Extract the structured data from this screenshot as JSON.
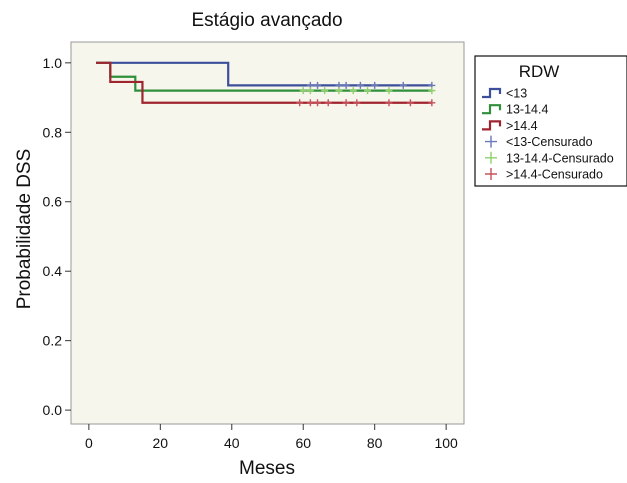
{
  "chart_data": {
    "type": "line",
    "subtype": "kaplan-meier",
    "title": "Estágio avançado",
    "xlabel": "Meses",
    "ylabel": "Probabilidade DSS",
    "xlim": [
      -5,
      105
    ],
    "ylim": [
      -0.04,
      1.06
    ],
    "xticks": [
      0,
      20,
      40,
      60,
      80,
      100
    ],
    "yticks": [
      0.0,
      0.2,
      0.4,
      0.6,
      0.8,
      1.0
    ],
    "ytick_labels": [
      "0.0",
      "0.2",
      "0.4",
      "0.6",
      "0.8",
      "1.0"
    ],
    "grid": false,
    "background": "#f6f6ec",
    "legend": {
      "title": "RDW",
      "placement": "right",
      "entries": [
        {
          "label": "<13",
          "kind": "line",
          "color": "#3c4f9a"
        },
        {
          "label": "13-14.4",
          "kind": "line",
          "color": "#2f8f3a"
        },
        {
          "label": ">14.4",
          "kind": "line",
          "color": "#a0242e"
        },
        {
          "label": "<13-Censurado",
          "kind": "cross",
          "color": "#6a78b8"
        },
        {
          "label": "13-14.4-Censurado",
          "kind": "cross",
          "color": "#8fd06a"
        },
        {
          "label": ">14.4-Censurado",
          "kind": "cross",
          "color": "#c8505a"
        }
      ]
    },
    "series": [
      {
        "name": "<13",
        "color": "#3c4f9a",
        "x": [
          2,
          39,
          96
        ],
        "y": [
          1.0,
          0.935,
          0.935
        ],
        "censored_x": [
          62,
          64,
          70,
          72,
          76,
          80,
          88,
          96
        ]
      },
      {
        "name": "13-14.4",
        "color": "#2f8f3a",
        "x": [
          2,
          6,
          11,
          13,
          96
        ],
        "y": [
          1.0,
          0.96,
          0.96,
          0.92,
          0.92
        ],
        "censored_x": [
          60,
          62,
          66,
          70,
          74,
          78,
          84,
          96
        ]
      },
      {
        "name": ">14.4",
        "color": "#a0242e",
        "x": [
          2,
          6,
          11,
          15,
          96
        ],
        "y": [
          1.0,
          0.945,
          0.945,
          0.885,
          0.885
        ],
        "censored_x": [
          59,
          62,
          64,
          67,
          72,
          75,
          84,
          90,
          96
        ]
      }
    ]
  }
}
